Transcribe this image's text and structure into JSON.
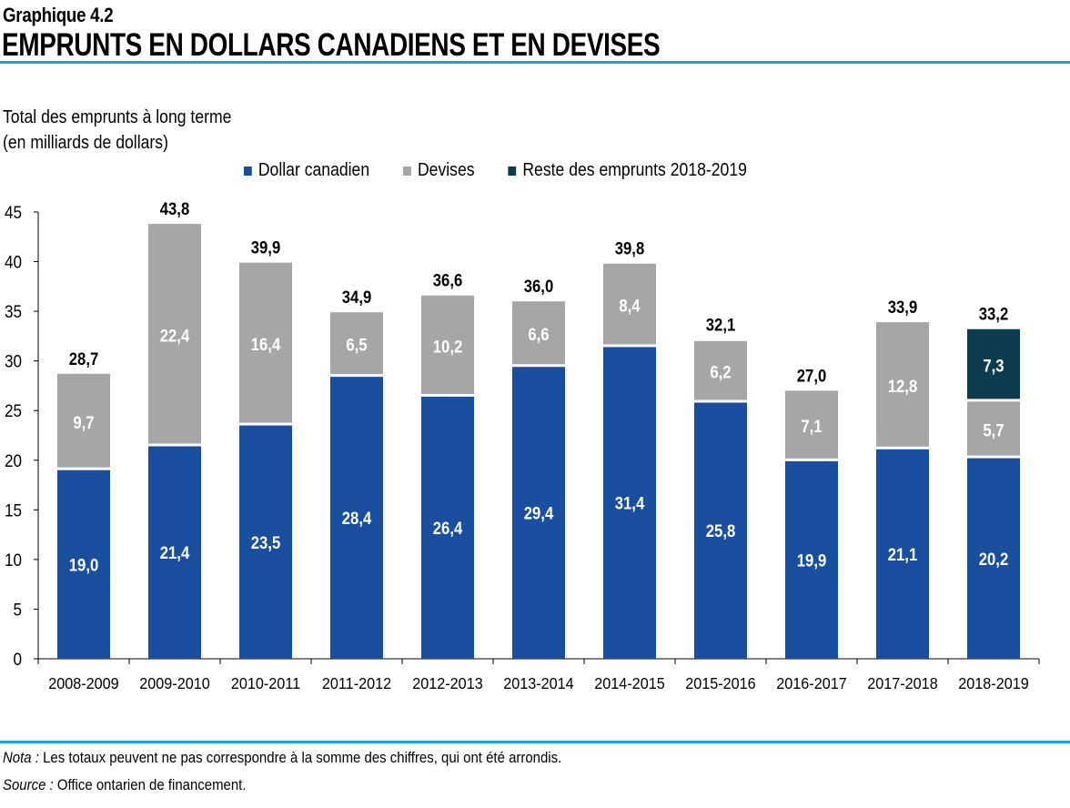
{
  "header": {
    "label": "Graphique 4.2",
    "title": "EMPRUNTS  EN DOLLARS CANADIENS  ET EN DEVISES"
  },
  "footer": {
    "note_label": "Nota :",
    "note_text": " Les totaux peuvent ne pas correspondre à la somme des chiffres, qui ont été arrondis.",
    "source_label": "Source :",
    "source_text": " Office ontarien de financement."
  },
  "chart_data": {
    "type": "bar",
    "stacked": true,
    "ylabel_line1": "Total des emprunts à long terme",
    "ylabel_line2": "(en milliards de dollars)",
    "ylim": [
      0,
      45
    ],
    "yticks": [
      0,
      5,
      10,
      15,
      20,
      25,
      30,
      35,
      40,
      45
    ],
    "grid": false,
    "legend_position": "top",
    "categories": [
      "2008-2009",
      "2009-2010",
      "2010-2011",
      "2011-2012",
      "2012-2013",
      "2013-2014",
      "2014-2015",
      "2015-2016",
      "2016-2017",
      "2017-2018",
      "2018-2019"
    ],
    "series": [
      {
        "name": "Dollar canadien",
        "color": "#1a4fa0",
        "values": [
          19.0,
          21.4,
          23.5,
          28.4,
          26.4,
          29.4,
          31.4,
          25.8,
          19.9,
          21.1,
          20.2
        ],
        "labels": [
          "19,0",
          "21,4",
          "23,5",
          "28,4",
          "26,4",
          "29,4",
          "31,4",
          "25,8",
          "19,9",
          "21,1",
          "20,2"
        ]
      },
      {
        "name": "Devises",
        "color": "#a6a6a6",
        "values": [
          9.7,
          22.4,
          16.4,
          6.5,
          10.2,
          6.6,
          8.4,
          6.2,
          7.1,
          12.8,
          5.7
        ],
        "labels": [
          "9,7",
          "22,4",
          "16,4",
          "6,5",
          "10,2",
          "6,6",
          "8,4",
          "6,2",
          "7,1",
          "12,8",
          "5,7"
        ]
      },
      {
        "name": "Reste des emprunts 2018-2019",
        "color": "#0d3b4f",
        "values": [
          0,
          0,
          0,
          0,
          0,
          0,
          0,
          0,
          0,
          0,
          7.3
        ],
        "labels": [
          "",
          "",
          "",
          "",
          "",
          "",
          "",
          "",
          "",
          "",
          "7,3"
        ]
      }
    ],
    "totals": [
      28.7,
      43.8,
      39.9,
      34.9,
      36.6,
      36.0,
      39.8,
      32.1,
      27.0,
      33.9,
      33.2
    ],
    "total_labels": [
      "28,7",
      "43,8",
      "39,9",
      "34,9",
      "36,6",
      "36,0",
      "39,8",
      "32,1",
      "27,0",
      "33,9",
      "33,2"
    ]
  }
}
